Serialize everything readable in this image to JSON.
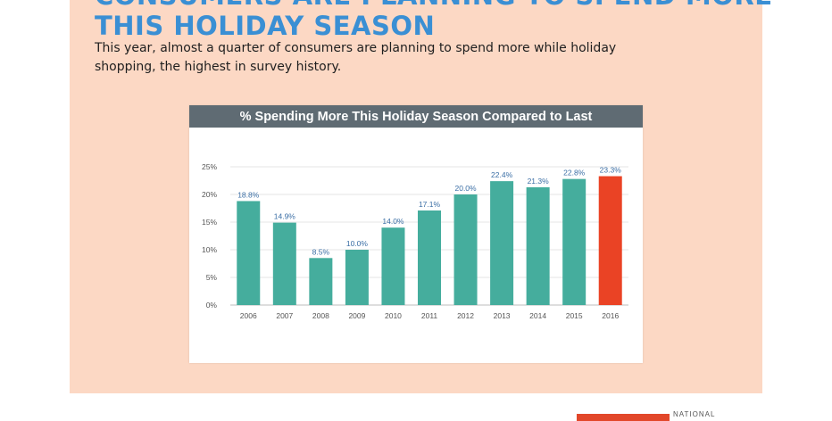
{
  "headline": {
    "line1": "CONSUMERS ARE PLANNING TO SPEND MORE",
    "line2": "THIS HOLIDAY SEASON"
  },
  "subtitle": "This year, almost a quarter of consumers are planning to spend more while holiday shopping, the highest in survey history.",
  "logo": {
    "text": "NATIONAL"
  },
  "colors": {
    "panel": "#fcd8c4",
    "headline": "#3a8fd4",
    "bar": "#45ad9d",
    "highlight": "#ea4325",
    "card_header": "#5f6b73"
  },
  "chart_data": {
    "type": "bar",
    "title": "% Spending More This Holiday Season Compared to Last",
    "categories": [
      "2006",
      "2007",
      "2008",
      "2009",
      "2010",
      "2011",
      "2012",
      "2013",
      "2014",
      "2015",
      "2016"
    ],
    "values": [
      18.8,
      14.9,
      8.5,
      10.0,
      14.0,
      17.1,
      20.0,
      22.4,
      21.3,
      22.8,
      23.3
    ],
    "labels": [
      "18.8%",
      "14.9%",
      "8.5%",
      "10.0%",
      "14.0%",
      "17.1%",
      "20.0%",
      "22.4%",
      "21.3%",
      "22.8%",
      "23.3%"
    ],
    "yticks": [
      "0%",
      "5%",
      "10%",
      "15%",
      "20%",
      "25%"
    ],
    "ylim": [
      0,
      25
    ],
    "highlight_category": "2016",
    "grid": true,
    "legend": "none"
  }
}
